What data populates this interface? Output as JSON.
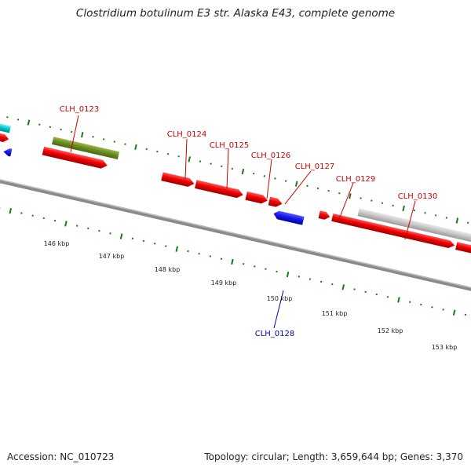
{
  "title": "Clostridium botulinum E3 str. Alaska E43, complete genome",
  "footer": {
    "accession": "Accession: NC_010723",
    "summary": "Topology: circular; Length: 3,659,644 bp; Genes: 3,370"
  },
  "scale_labels": [
    "146 kbp",
    "147 kbp",
    "148 kbp",
    "149 kbp",
    "150 kbp",
    "151 kbp",
    "152 kbp",
    "153 kbp"
  ],
  "gene_labels": {
    "clh0123": "CLH_0123",
    "clh0124": "CLH_0124",
    "clh0125": "CLH_0125",
    "clh0126": "CLH_0126",
    "clh0127": "CLH_0127",
    "clh0128": "CLH_0128",
    "clh0129": "CLH_0129",
    "clh0130": "CLH_0130"
  },
  "colors": {
    "forward_cds": "#ee0000",
    "reverse_cds": "#1a1aee",
    "olive_feature": "#6b8e23",
    "gray_feature": "#c8c8c8",
    "cyan_feature": "#00cccc",
    "backbone": "#888888",
    "tick": "#1a7a1a",
    "label_red": "#cc0000",
    "label_blue": "#0000aa"
  }
}
